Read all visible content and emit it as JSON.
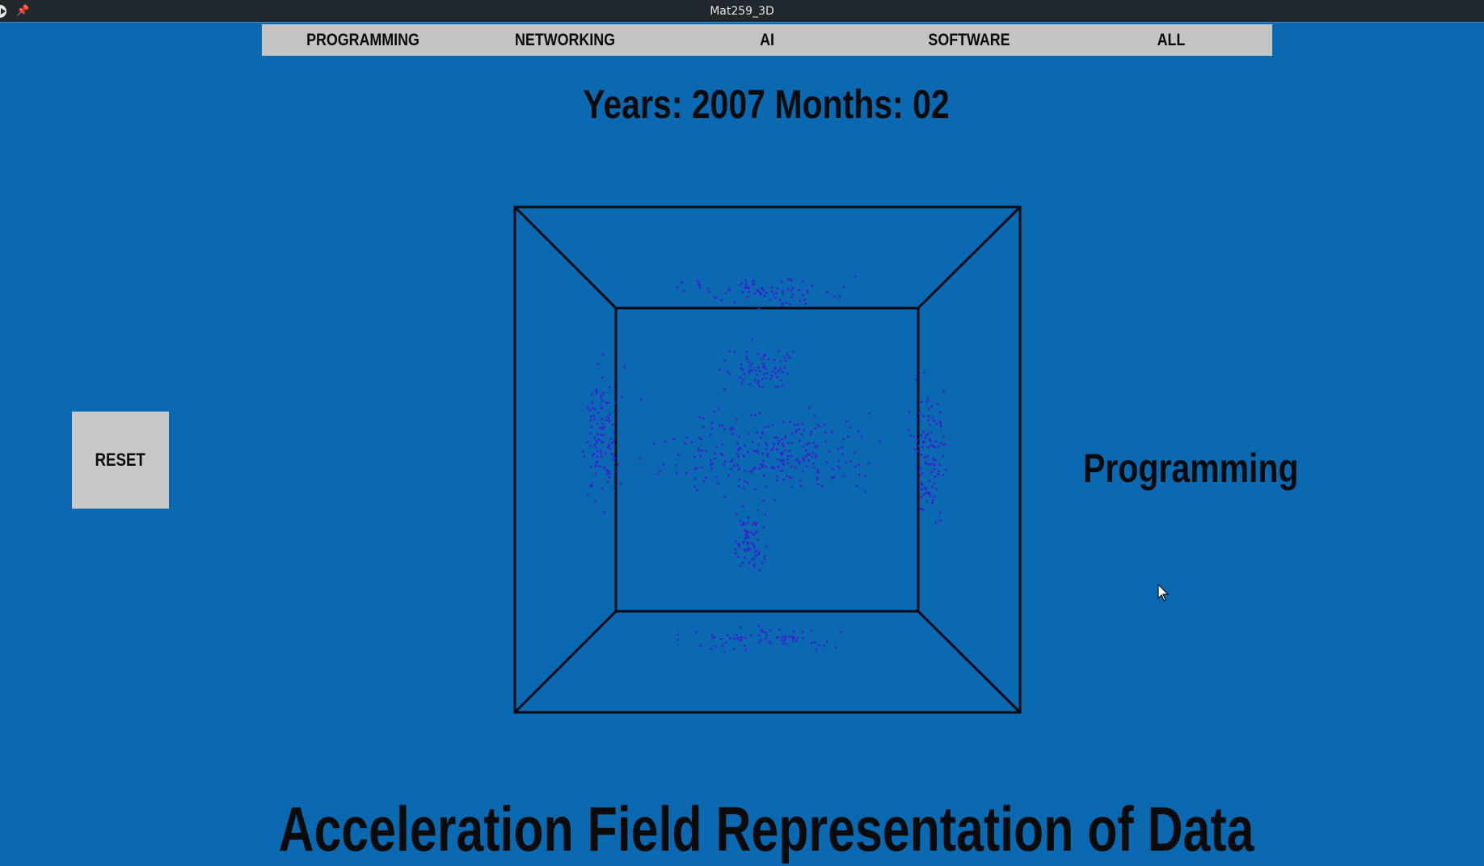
{
  "window": {
    "title": "Mat259_3D"
  },
  "menu": {
    "items": [
      {
        "label": "PROGRAMMING",
        "name": "menu-programming"
      },
      {
        "label": "NETWORKING",
        "name": "menu-networking"
      },
      {
        "label": "AI",
        "name": "menu-ai"
      },
      {
        "label": "SOFTWARE",
        "name": "menu-software"
      },
      {
        "label": "ALL",
        "name": "menu-all"
      }
    ]
  },
  "date_label": "Years: 2007 Months: 02",
  "reset_label": "RESET",
  "category_label": "Programming",
  "footer_title": "Acceleration Field Representation of Data",
  "colors": {
    "background": "#0a69b0",
    "menu_background": "#c4c4c4",
    "point_color": "#3a1fd1",
    "box_line": "#050a14"
  },
  "icons": {
    "window": "app-icon",
    "pin": "pin-icon",
    "cursor": "mouse-pointer-icon"
  }
}
